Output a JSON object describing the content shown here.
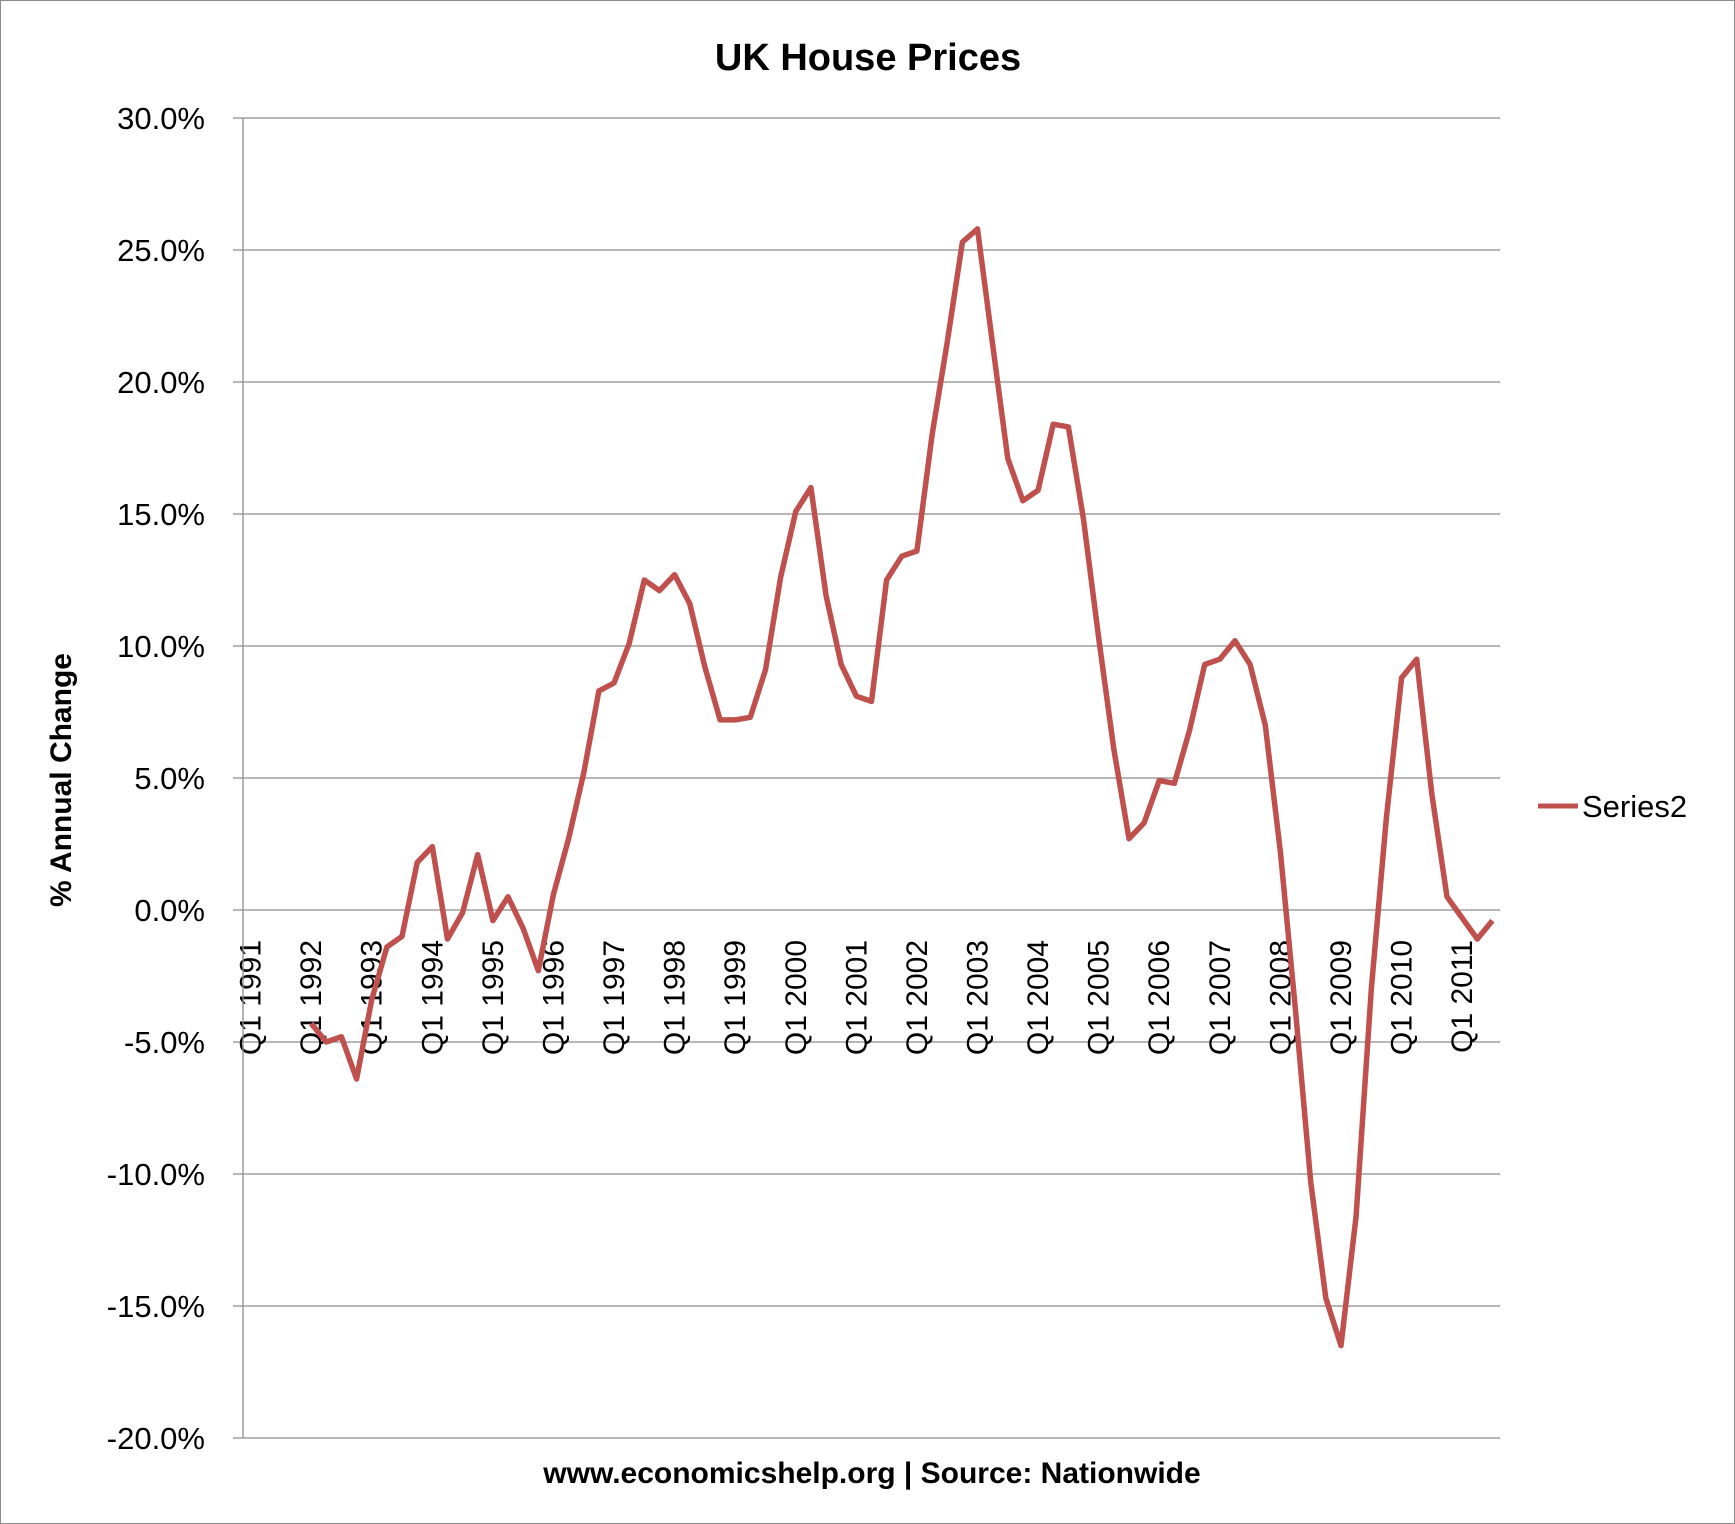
{
  "chart_data": {
    "type": "line",
    "title": "UK House Prices",
    "xlabel": "www.economicshelp.org | Source: Nationwide",
    "ylabel": "% Annual Change",
    "ylim": [
      -20,
      30
    ],
    "ytick_step": 5,
    "ytick_labels": [
      "-20.0%",
      "-15.0%",
      "-10.0%",
      "-5.0%",
      "0.0%",
      "5.0%",
      "10.0%",
      "15.0%",
      "20.0%",
      "25.0%",
      "30.0%"
    ],
    "grid": true,
    "legend_position": "right",
    "x_start": "Q1 1991",
    "x_end": "Q3 2011",
    "x_frequency": "quarterly",
    "x_tick_labels": [
      "Q1 1991",
      "Q1 1992",
      "Q1 1993",
      "Q1 1994",
      "Q1 1995",
      "Q1 1996",
      "Q1 1997",
      "Q1 1998",
      "Q1 1999",
      "Q1 2000",
      "Q1 2001",
      "Q1 2002",
      "Q1 2003",
      "Q1 2004",
      "Q1 2005",
      "Q1 2006",
      "Q1 2007",
      "Q1 2008",
      "Q1 2009",
      "Q1 2010",
      "Q1 2011"
    ],
    "series": [
      {
        "name": "Series2",
        "color": "#c0504d",
        "values": [
          null,
          null,
          null,
          null,
          -4.3,
          -5.0,
          -4.8,
          -6.4,
          -3.4,
          -1.4,
          -1.0,
          1.8,
          2.4,
          -1.1,
          -0.1,
          2.1,
          -0.4,
          0.5,
          -0.7,
          -2.3,
          0.6,
          2.7,
          5.2,
          8.3,
          8.6,
          10.1,
          12.5,
          12.1,
          12.7,
          11.6,
          9.2,
          7.2,
          7.2,
          7.3,
          9.1,
          12.6,
          15.1,
          16.0,
          11.9,
          9.3,
          8.1,
          7.9,
          12.5,
          13.4,
          13.6,
          18.0,
          21.5,
          25.3,
          25.8,
          21.4,
          17.1,
          15.5,
          15.9,
          18.4,
          18.3,
          14.8,
          10.3,
          6.1,
          2.7,
          3.3,
          4.9,
          4.8,
          6.8,
          9.3,
          9.5,
          10.2,
          9.3,
          7.0,
          2.2,
          -3.8,
          -10.3,
          -14.7,
          -16.5,
          -11.6,
          -3.0,
          3.5,
          8.8,
          9.5,
          4.4,
          0.5,
          -0.3,
          -1.1,
          -0.4
        ]
      }
    ]
  }
}
